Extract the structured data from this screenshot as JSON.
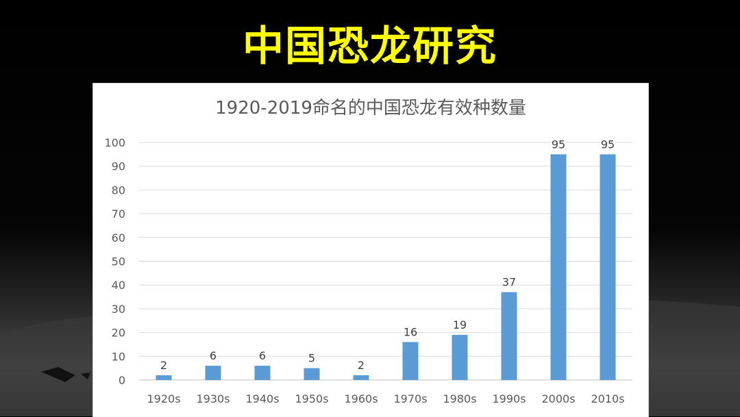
{
  "slide": {
    "title": "中国恐龙研究"
  },
  "chart_data": {
    "type": "bar",
    "title": "1920-2019命名的中国恐龙有效种数量",
    "xlabel": "",
    "ylabel": "",
    "categories": [
      "1920s",
      "1930s",
      "1940s",
      "1950s",
      "1960s",
      "1970s",
      "1980s",
      "1990s",
      "2000s",
      "2010s"
    ],
    "values": [
      2,
      6,
      6,
      5,
      2,
      16,
      19,
      37,
      95,
      95
    ],
    "ylim": [
      0,
      100
    ],
    "yticks": [
      0,
      10,
      20,
      30,
      40,
      50,
      60,
      70,
      80,
      90,
      100
    ],
    "grid": true,
    "data_labels": true,
    "bar_color": "#5b9bd5"
  }
}
